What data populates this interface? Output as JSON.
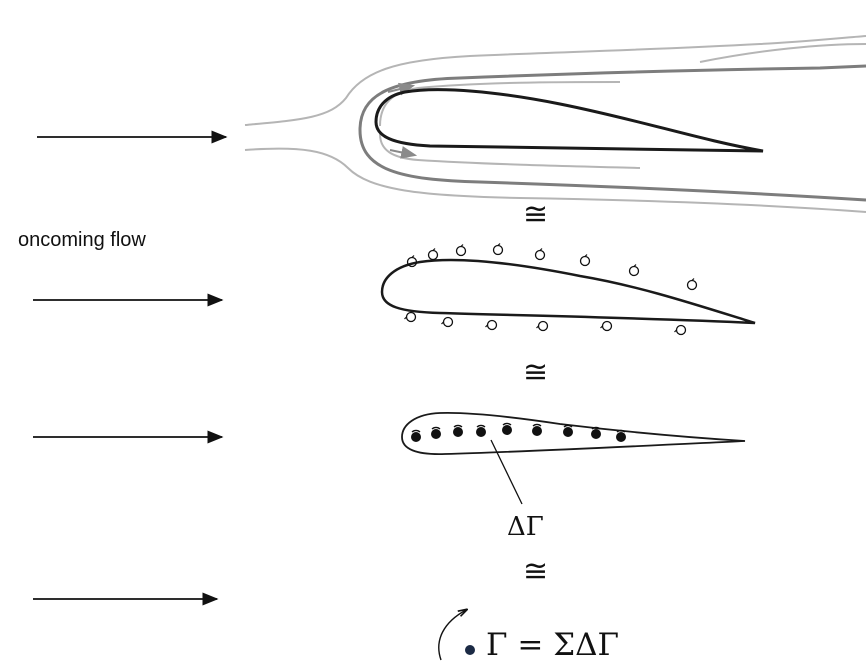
{
  "labels": {
    "oncoming_flow": "oncoming flow",
    "approx_symbol": "≅",
    "delta_gamma": "ΔΓ",
    "total_circulation": "Γ = ΣΔΓ"
  },
  "colors": {
    "line": "#111111",
    "streamline_light": "#b5b5b5",
    "streamline_dark": "#7d7d7d",
    "airfoil_stroke": "#1a1a1a",
    "vortex_dot": "#1b2a44"
  },
  "icons": {
    "flow_arrow": "arrow-right-icon",
    "surface_vortex": "vortex-circle-icon",
    "bound_vortex": "vortex-dot-icon",
    "circulation_arrow": "curved-arrow-icon"
  }
}
